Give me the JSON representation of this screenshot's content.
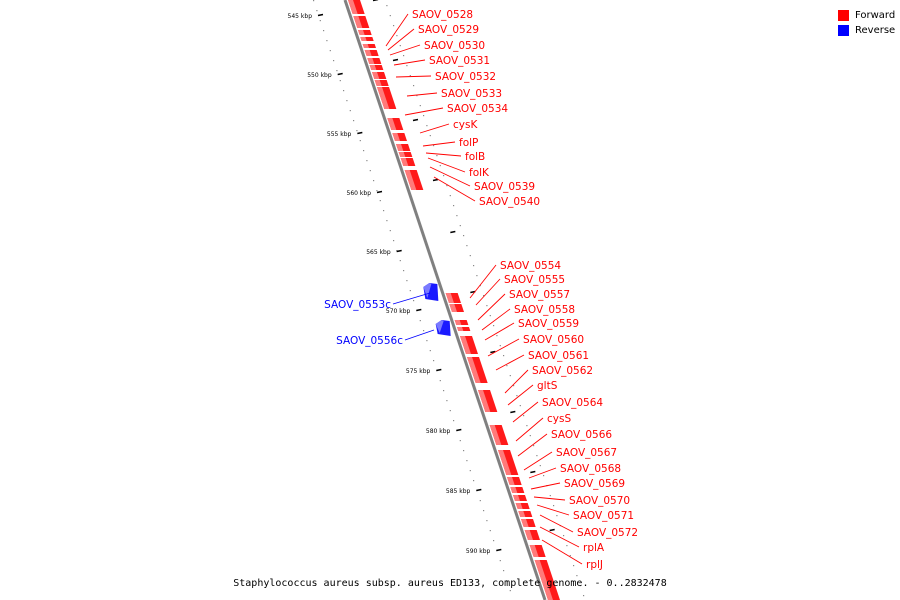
{
  "legend": [
    {
      "label": "Forward",
      "color": "#ff0000"
    },
    {
      "label": "Reverse",
      "color": "#0000ff"
    }
  ],
  "caption": "Staphylococcus aureus subsp. aureus ED133, complete genome. - 0..2832478",
  "colors": {
    "forward": "#ff0000",
    "reverse": "#0000ff",
    "axis": "#808080"
  },
  "scale_ticks": [
    "545 kbp",
    "550 kbp",
    "555 kbp",
    "560 kbp",
    "565 kbp",
    "570 kbp",
    "575 kbp",
    "580 kbp",
    "585 kbp",
    "590 kbp"
  ],
  "genes_forward": [
    "SAOV_0528",
    "SAOV_0529",
    "SAOV_0530",
    "SAOV_0531",
    "SAOV_0532",
    "SAOV_0533",
    "SAOV_0534",
    "cysK",
    "folP",
    "folB",
    "folK",
    "SAOV_0539",
    "SAOV_0540",
    "SAOV_0554",
    "SAOV_0555",
    "SAOV_0557",
    "SAOV_0558",
    "SAOV_0559",
    "SAOV_0560",
    "SAOV_0561",
    "SAOV_0562",
    "gltS",
    "SAOV_0564",
    "cysS",
    "SAOV_0566",
    "SAOV_0567",
    "SAOV_0568",
    "SAOV_0569",
    "SAOV_0570",
    "SAOV_0571",
    "SAOV_0572",
    "rplA",
    "rplJ"
  ],
  "genes_reverse": [
    "SAOV_0553c",
    "SAOV_0556c"
  ]
}
